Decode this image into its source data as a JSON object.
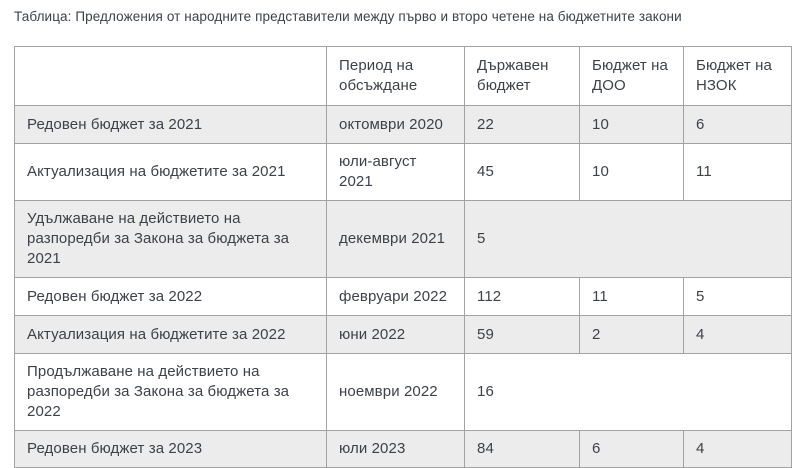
{
  "page": {
    "title": "Таблица: Предложения от народните представители между първо и второ четене на бюджетните закони"
  },
  "table": {
    "column_headers": [
      "",
      "Период на обсъждане",
      "Държавен бюджет",
      "Бюджет на ДОО",
      "Бюджет на НЗОК"
    ],
    "rows": [
      {
        "label": "Редовен бюджет за 2021",
        "period": "октомври 2020",
        "values": [
          "22",
          "10",
          "6"
        ],
        "merged": false
      },
      {
        "label": "Актуализация на бюджетите за 2021",
        "period": "юли-август 2021",
        "values": [
          "45",
          "10",
          "11"
        ],
        "merged": false
      },
      {
        "label": "Удължаване на действието на разпоредби за Закона за бюджета за 2021",
        "period": "декември 2021",
        "values": [
          "5"
        ],
        "merged": true
      },
      {
        "label": "Редовен бюджет за 2022",
        "period": "февруари 2022",
        "values": [
          "112",
          "11",
          "5"
        ],
        "merged": false
      },
      {
        "label": "Актуализация на бюджетите за 2022",
        "period": "юни 2022",
        "values": [
          "59",
          "2",
          "4"
        ],
        "merged": false
      },
      {
        "label": "Продължаване на действието на разпоредби за Закона за бюджета за 2022",
        "period": "ноември 2022",
        "values": [
          "16"
        ],
        "merged": true
      },
      {
        "label": "Редовен бюджет за 2023",
        "period": "юли 2023",
        "values": [
          "84",
          "6",
          "4"
        ],
        "merged": false
      }
    ]
  },
  "colors": {
    "text": "#3d4248",
    "row_stripe": "#ececec",
    "table_border": "#a2a2a2",
    "background": "#ffffff"
  }
}
